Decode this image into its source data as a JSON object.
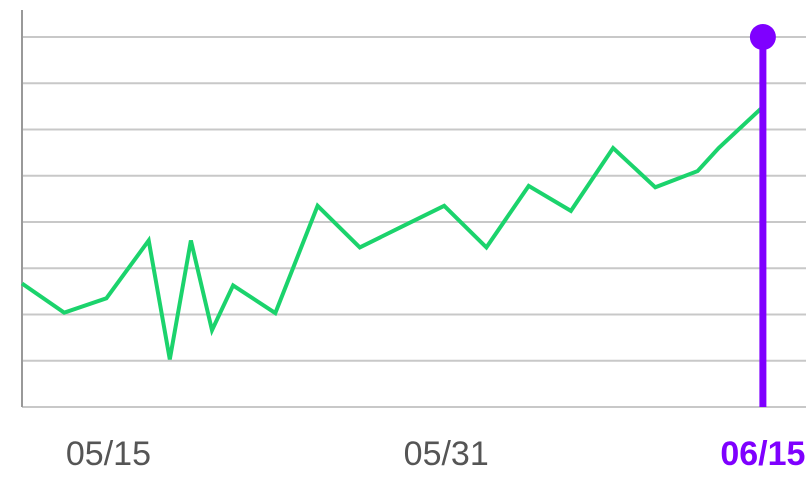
{
  "chart_data": {
    "type": "line",
    "x": [
      "05/11",
      "05/13",
      "05/15",
      "05/17",
      "05/18",
      "05/19",
      "05/20",
      "05/21",
      "05/23",
      "05/25",
      "05/27",
      "05/29",
      "05/31",
      "06/02",
      "06/04",
      "06/06",
      "06/08",
      "06/10",
      "06/12",
      "06/13",
      "06/15"
    ],
    "series": [
      {
        "color": "#1bd36c",
        "values": [
          2.67,
          2.04,
          2.35,
          3.6,
          1.03,
          3.6,
          1.66,
          2.63,
          2.03,
          4.35,
          3.45,
          3.9,
          4.35,
          3.45,
          4.78,
          4.24,
          5.6,
          4.75,
          5.1,
          5.6,
          6.45
        ]
      }
    ],
    "x_ticks": [
      {
        "label": "05/15",
        "highlight": false
      },
      {
        "label": "05/31",
        "highlight": false
      },
      {
        "label": "06/15",
        "highlight": true
      }
    ],
    "marker": {
      "label": "06/15",
      "color": "#7f00ff"
    },
    "ylim": [
      0,
      8
    ],
    "grid": true,
    "gridlines": 8,
    "colors": {
      "grid": "#c8c8c8",
      "axis": "#999999",
      "tick_text": "#555555",
      "highlight": "#7f00ff"
    }
  }
}
